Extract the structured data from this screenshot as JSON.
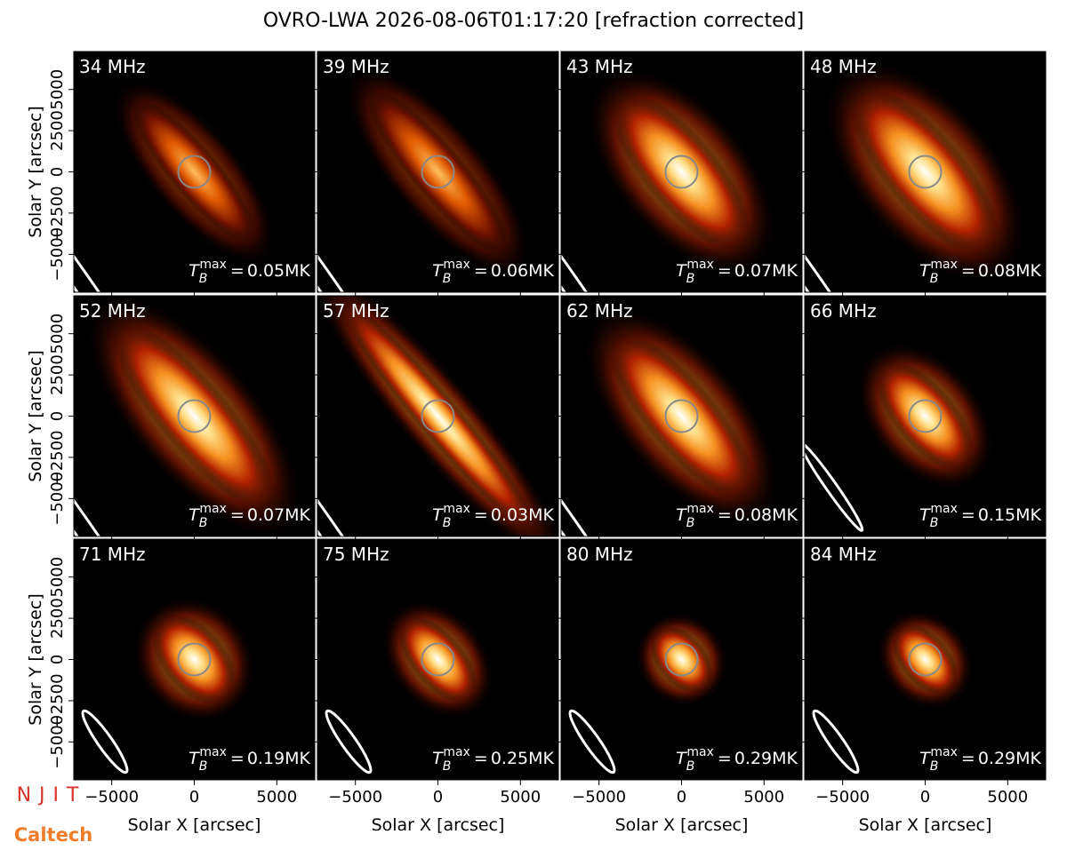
{
  "figure": {
    "title": "OVRO-LWA 2026-08-06T01:17:20 [refraction corrected]",
    "xlabel": "Solar X [arcsec]",
    "ylabel": "Solar Y [arcsec]",
    "xlim": [
      -7300,
      7300
    ],
    "ylim": [
      -7300,
      7300
    ],
    "xticks": [
      {
        "value": -5000,
        "label": "−5000"
      },
      0,
      5000
    ],
    "yticks": [
      {
        "value": -5000,
        "label": "−5000"
      },
      {
        "value": -2500,
        "label": "−2500"
      },
      0,
      2500,
      5000
    ],
    "tmax_symbol": "T",
    "tmax_sub": "B",
    "tmax_sup": "max",
    "tmax_equals": "=",
    "tmax_unit": "MK",
    "logo_top": "NJIT",
    "logo_bottom": "Caltech"
  },
  "chart_data": [
    {
      "type": "image",
      "title": "34 MHz",
      "tmax": 0.05
    },
    {
      "type": "image",
      "title": "39 MHz",
      "tmax": 0.06
    },
    {
      "type": "image",
      "title": "43 MHz",
      "tmax": 0.07
    },
    {
      "type": "image",
      "title": "48 MHz",
      "tmax": 0.08
    },
    {
      "type": "image",
      "title": "52 MHz",
      "tmax": 0.07
    },
    {
      "type": "image",
      "title": "57 MHz",
      "tmax": 0.03
    },
    {
      "type": "image",
      "title": "62 MHz",
      "tmax": 0.08
    },
    {
      "type": "image",
      "title": "66 MHz",
      "tmax": 0.15
    },
    {
      "type": "image",
      "title": "71 MHz",
      "tmax": 0.19
    },
    {
      "type": "image",
      "title": "75 MHz",
      "tmax": 0.25
    },
    {
      "type": "image",
      "title": "80 MHz",
      "tmax": 0.29
    },
    {
      "type": "image",
      "title": "84 MHz",
      "tmax": 0.29
    }
  ]
}
